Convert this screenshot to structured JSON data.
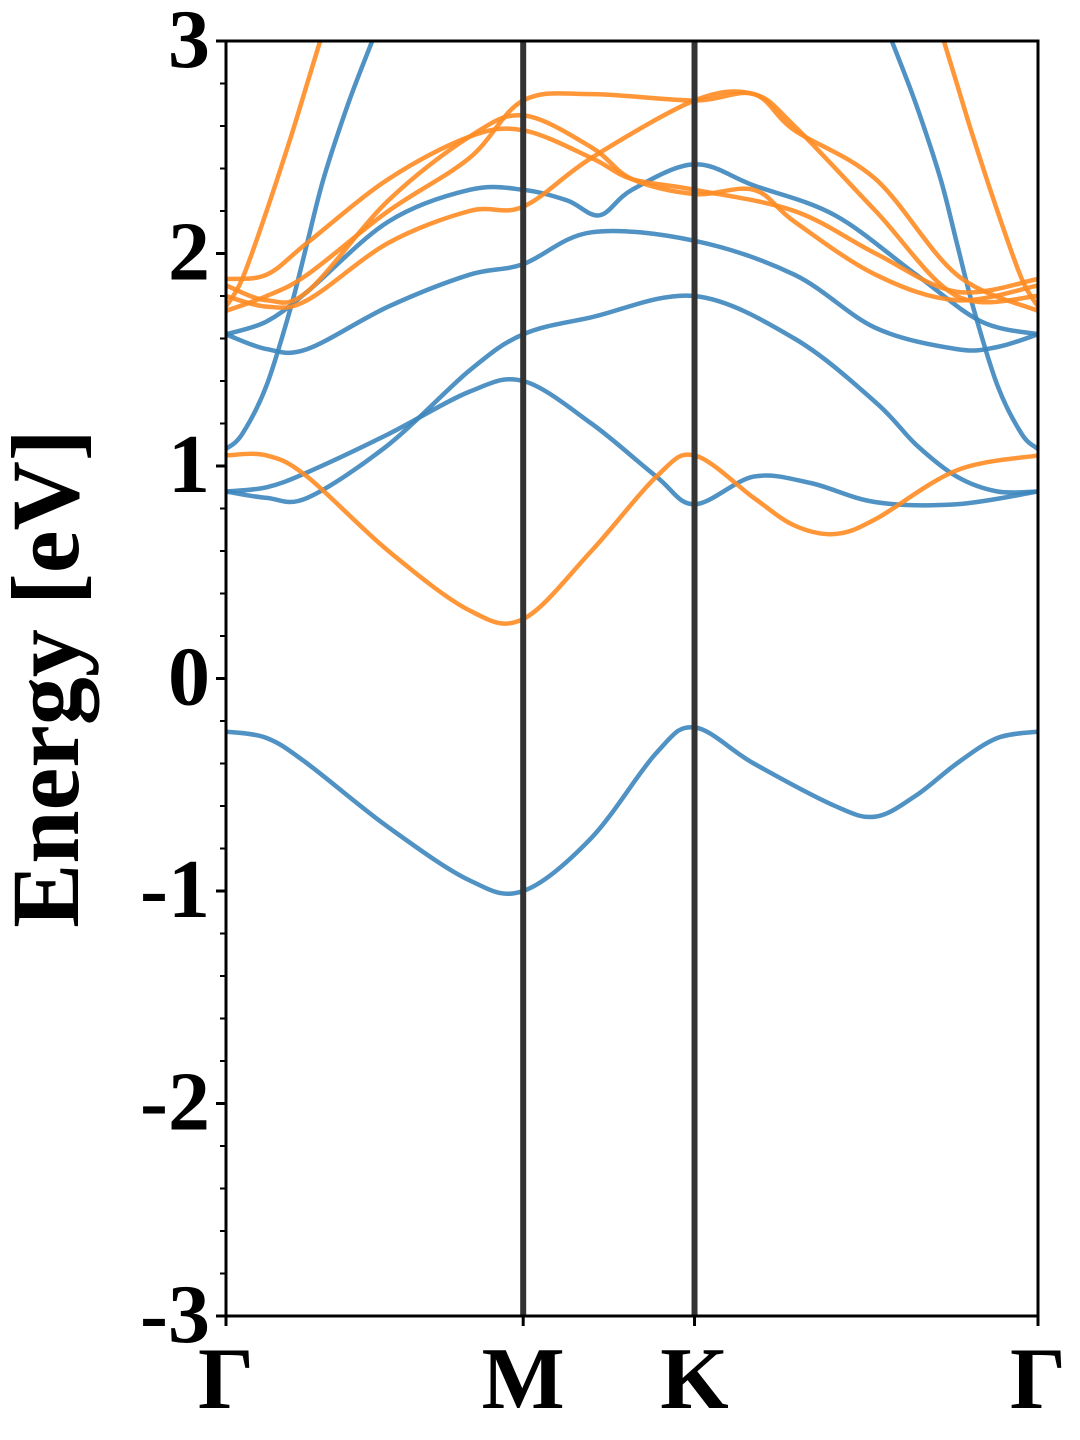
{
  "chart_data": {
    "type": "line",
    "title": "",
    "xlabel": "",
    "ylabel": "Energy [eV]",
    "ylim": [
      -3,
      3
    ],
    "xlim": [
      0,
      1
    ],
    "grid": false,
    "legend": "none",
    "yticks": [
      -3,
      -2,
      -1,
      0,
      1,
      2,
      3
    ],
    "ytick_labels": [
      "-3",
      "-2",
      "-1",
      "0",
      "1",
      "2",
      "3"
    ],
    "minor_ytick_step": 0.2,
    "kpoints": [
      {
        "label": "Γ",
        "x": 0.0
      },
      {
        "label": "M",
        "x": 0.366
      },
      {
        "label": "K",
        "x": 0.577
      },
      {
        "label": "Γ",
        "x": 1.0
      }
    ],
    "colors": {
      "spin_up": "#3c86bc",
      "spin_down": "#ff8c24",
      "kline": "#333333"
    },
    "series": [
      {
        "group": "spin_up",
        "x": [
          0,
          0.05,
          0.1,
          0.2,
          0.3,
          0.366,
          0.45,
          0.53,
          0.577,
          0.65,
          0.75,
          0.8,
          0.85,
          0.9,
          0.95,
          1.0
        ],
        "y": [
          -0.25,
          -0.28,
          -0.4,
          -0.7,
          -0.95,
          -1.0,
          -0.75,
          -0.35,
          -0.23,
          -0.4,
          -0.6,
          -0.65,
          -0.55,
          -0.4,
          -0.28,
          -0.25
        ]
      },
      {
        "group": "spin_up",
        "x": [
          0,
          0.05,
          0.1,
          0.2,
          0.3,
          0.366,
          0.45,
          0.53,
          0.577,
          0.65,
          0.72,
          0.8,
          0.9,
          1.0
        ],
        "y": [
          0.88,
          0.9,
          0.97,
          1.15,
          1.35,
          1.4,
          1.2,
          0.95,
          0.82,
          0.95,
          0.92,
          0.83,
          0.82,
          0.88
        ]
      },
      {
        "group": "spin_up",
        "x": [
          0,
          0.05,
          0.1,
          0.2,
          0.3,
          0.366,
          0.45,
          0.577,
          0.7,
          0.8,
          0.85,
          0.9,
          0.95,
          1.0
        ],
        "y": [
          0.88,
          0.85,
          0.85,
          1.1,
          1.45,
          1.62,
          1.7,
          1.8,
          1.6,
          1.3,
          1.1,
          0.95,
          0.88,
          0.88
        ]
      },
      {
        "group": "spin_up",
        "x": [
          0,
          0.05,
          0.1,
          0.2,
          0.3,
          0.366,
          0.45,
          0.577,
          0.7,
          0.8,
          0.9,
          0.95,
          1.0
        ],
        "y": [
          1.62,
          1.55,
          1.55,
          1.75,
          1.9,
          1.95,
          2.1,
          2.06,
          1.9,
          1.65,
          1.55,
          1.56,
          1.62
        ]
      },
      {
        "group": "spin_up",
        "x": [
          0,
          0.05,
          0.1,
          0.2,
          0.3,
          0.366,
          0.42,
          0.46,
          0.5,
          0.577,
          0.65,
          0.75,
          0.85,
          0.93,
          1.0
        ],
        "y": [
          1.62,
          1.68,
          1.82,
          2.15,
          2.3,
          2.3,
          2.25,
          2.18,
          2.3,
          2.42,
          2.32,
          2.18,
          1.9,
          1.68,
          1.62
        ]
      },
      {
        "group": "spin_up",
        "x": [
          0,
          0.02,
          0.05,
          0.08,
          0.1,
          0.12,
          0.15,
          0.18,
          0.2
        ],
        "y": [
          1.08,
          1.15,
          1.38,
          1.75,
          2.05,
          2.35,
          2.7,
          3.0,
          3.2
        ]
      },
      {
        "group": "spin_up",
        "x": [
          0.8,
          0.82,
          0.85,
          0.88,
          0.9,
          0.92,
          0.95,
          0.98,
          1.0
        ],
        "y": [
          3.2,
          3.0,
          2.7,
          2.35,
          2.05,
          1.75,
          1.38,
          1.15,
          1.08
        ]
      },
      {
        "group": "spin_down",
        "x": [
          0,
          0.05,
          0.1,
          0.2,
          0.3,
          0.366,
          0.45,
          0.53,
          0.577,
          0.65,
          0.7,
          0.75,
          0.8,
          0.9,
          1.0
        ],
        "y": [
          1.05,
          1.05,
          0.95,
          0.6,
          0.32,
          0.28,
          0.6,
          0.95,
          1.05,
          0.85,
          0.72,
          0.68,
          0.75,
          0.98,
          1.05
        ]
      },
      {
        "group": "spin_down",
        "x": [
          0,
          0.02,
          0.05,
          0.08,
          0.1,
          0.12,
          0.14,
          0.16
        ],
        "y": [
          1.75,
          1.88,
          2.2,
          2.55,
          2.8,
          3.05,
          3.3,
          3.5
        ]
      },
      {
        "group": "spin_down",
        "x": [
          0.84,
          0.86,
          0.88,
          0.9,
          0.92,
          0.95,
          0.98,
          1.0
        ],
        "y": [
          3.5,
          3.3,
          3.05,
          2.8,
          2.55,
          2.2,
          1.88,
          1.75
        ]
      },
      {
        "group": "spin_down",
        "x": [
          0,
          0.05,
          0.1,
          0.2,
          0.3,
          0.366,
          0.45,
          0.5,
          0.577,
          0.7,
          0.8,
          0.9,
          1.0
        ],
        "y": [
          1.88,
          1.9,
          2.05,
          2.35,
          2.55,
          2.58,
          2.45,
          2.35,
          2.3,
          2.2,
          2.0,
          1.82,
          1.88
        ]
      },
      {
        "group": "spin_down",
        "x": [
          0,
          0.05,
          0.1,
          0.2,
          0.3,
          0.366,
          0.45,
          0.5,
          0.577,
          0.65,
          0.7,
          0.8,
          0.9,
          1.0
        ],
        "y": [
          1.85,
          1.78,
          1.82,
          2.25,
          2.55,
          2.65,
          2.5,
          2.35,
          2.28,
          2.3,
          2.15,
          1.9,
          1.78,
          1.85
        ]
      },
      {
        "group": "spin_down",
        "x": [
          0,
          0.05,
          0.1,
          0.2,
          0.3,
          0.366,
          0.45,
          0.577,
          0.65,
          0.7,
          0.8,
          0.9,
          1.0
        ],
        "y": [
          1.8,
          1.75,
          1.78,
          2.05,
          2.2,
          2.22,
          2.45,
          2.72,
          2.75,
          2.6,
          2.2,
          1.8,
          1.8
        ]
      },
      {
        "group": "spin_down",
        "x": [
          0,
          0.05,
          0.1,
          0.2,
          0.3,
          0.366,
          0.45,
          0.577,
          0.65,
          0.7,
          0.8,
          0.9,
          1.0
        ],
        "y": [
          1.73,
          1.8,
          1.9,
          2.2,
          2.45,
          2.72,
          2.75,
          2.72,
          2.75,
          2.58,
          2.35,
          1.9,
          1.73
        ]
      }
    ]
  }
}
